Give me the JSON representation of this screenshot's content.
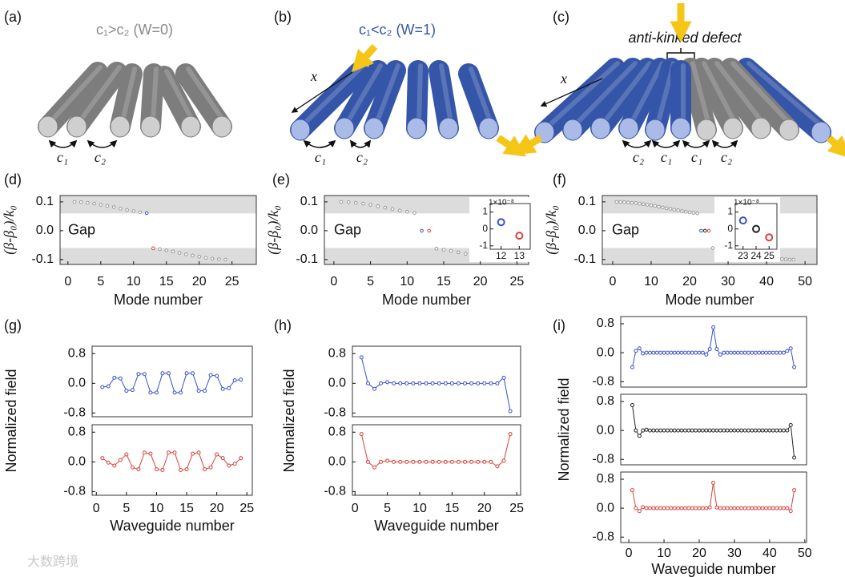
{
  "diagrams": [
    {
      "label": "(a)",
      "title": "c₁>c₂ (W=0)",
      "couplings": [
        "c₁",
        "c₂"
      ]
    },
    {
      "label": "(b)",
      "title": "c₁<c₂ (W=1)",
      "axis": "x",
      "couplings": [
        "c₁",
        "c₂"
      ]
    },
    {
      "label": "(c)",
      "annotation": "anti-kinked defect",
      "axis": "x",
      "couplings": [
        "c₂",
        "c₁",
        "c₁",
        "c₂"
      ]
    }
  ],
  "watermark": "大数跨境",
  "chart_data": [
    {
      "type": "scatter",
      "label": "(d)",
      "xlabel": "Mode number",
      "ylabel": "(β-β₀)/k₀",
      "annotation": "Gap",
      "xlim": [
        -1.2,
        28.7
      ],
      "xticks": [
        0,
        5,
        10,
        15,
        20,
        25
      ],
      "ylim": [
        -0.117,
        0.122
      ],
      "yticks": [
        0.1,
        {
          "value": 0,
          "label": "0.0"
        },
        -0.1
      ],
      "bands": [
        [
          0.06,
          0.122
        ],
        [
          -0.117,
          -0.06
        ]
      ],
      "series": [
        {
          "color": "#9a9a9a",
          "x": [
            1,
            2,
            3,
            4,
            5,
            6,
            7,
            8,
            9,
            10,
            11,
            14,
            15,
            16,
            17,
            18,
            19,
            20,
            21,
            22,
            23,
            24
          ],
          "values": [
            0.1,
            0.099,
            0.097,
            0.094,
            0.09,
            0.086,
            0.082,
            0.077,
            0.072,
            0.068,
            0.064,
            -0.064,
            -0.068,
            -0.072,
            -0.077,
            -0.082,
            -0.086,
            -0.09,
            -0.094,
            -0.097,
            -0.099,
            -0.1
          ]
        },
        {
          "color": "#3a50c8",
          "x": [
            12
          ],
          "values": [
            0.061
          ]
        },
        {
          "color": "#d9413a",
          "x": [
            13
          ],
          "values": [
            -0.061
          ]
        }
      ]
    },
    {
      "type": "scatter",
      "label": "(e)",
      "xlabel": "Mode number",
      "ylabel": "(β-β₀)/k₀",
      "annotation": "Gap",
      "xlim": [
        -1.3,
        26.6
      ],
      "xticks": [
        0,
        5,
        10,
        15,
        20,
        25
      ],
      "ylim": [
        -0.117,
        0.122
      ],
      "yticks": [
        0.1,
        {
          "value": 0,
          "label": "0.0"
        },
        -0.1
      ],
      "bands": [
        [
          0.06,
          0.122
        ],
        [
          -0.117,
          -0.06
        ]
      ],
      "series": [
        {
          "color": "#9a9a9a",
          "x": [
            1,
            2,
            3,
            4,
            5,
            6,
            7,
            8,
            9,
            10,
            11,
            14,
            15,
            16,
            17,
            18,
            19,
            20,
            21,
            22,
            23,
            24
          ],
          "values": [
            0.1,
            0.099,
            0.097,
            0.094,
            0.09,
            0.085,
            0.08,
            0.075,
            0.07,
            0.066,
            0.062,
            -0.062,
            -0.066,
            -0.07,
            -0.075,
            -0.08,
            -0.085,
            -0.09,
            -0.094,
            -0.097,
            -0.099,
            -0.1
          ]
        },
        {
          "color": "#3a50c8",
          "x": [
            12
          ],
          "values": [
            0
          ]
        },
        {
          "color": "#d9413a",
          "x": [
            13
          ],
          "values": [
            0
          ]
        }
      ],
      "inset": {
        "label": "1×10⁻⁸",
        "xlim": [
          11.4,
          13.6
        ],
        "xticks": [
          12,
          13
        ],
        "ylim": [
          -1.2,
          1.5
        ],
        "yticks": [
          1,
          0,
          -1
        ],
        "series": [
          {
            "color": "#3a50c8",
            "x": [
              12
            ],
            "values": [
              0.4
            ]
          },
          {
            "color": "#d9413a",
            "x": [
              13
            ],
            "values": [
              -0.4
            ]
          }
        ]
      }
    },
    {
      "type": "scatter",
      "label": "(f)",
      "xlabel": "Mode number",
      "ylabel": "(β-β₀)/k₀",
      "annotation": "Gap",
      "xlim": [
        -2.7,
        53.1
      ],
      "xticks": [
        0,
        10,
        20,
        30,
        40,
        50
      ],
      "ylim": [
        -0.117,
        0.122
      ],
      "yticks": [
        0.1,
        {
          "value": 0,
          "label": "0.0"
        },
        -0.1
      ],
      "bands": [
        [
          0.06,
          0.122
        ],
        [
          -0.117,
          -0.06
        ]
      ],
      "series": [
        {
          "color": "#9a9a9a",
          "x": [
            1,
            2,
            3,
            4,
            5,
            6,
            7,
            8,
            9,
            10,
            11,
            12,
            13,
            14,
            15,
            16,
            17,
            18,
            19,
            20,
            21,
            22,
            26,
            27,
            28,
            29,
            30,
            31,
            32,
            33,
            34,
            35,
            36,
            37,
            38,
            39,
            40,
            41,
            42,
            43,
            44,
            45,
            46,
            47
          ],
          "values": [
            0.1,
            0.1,
            0.099,
            0.098,
            0.097,
            0.096,
            0.094,
            0.092,
            0.09,
            0.088,
            0.086,
            0.083,
            0.081,
            0.078,
            0.076,
            0.073,
            0.071,
            0.068,
            0.066,
            0.064,
            0.062,
            0.06,
            -0.06,
            -0.062,
            -0.064,
            -0.066,
            -0.068,
            -0.071,
            -0.073,
            -0.076,
            -0.078,
            -0.081,
            -0.083,
            -0.086,
            -0.088,
            -0.09,
            -0.092,
            -0.094,
            -0.096,
            -0.097,
            -0.098,
            -0.099,
            -0.1,
            -0.1
          ]
        },
        {
          "color": "#3a50c8",
          "x": [
            23
          ],
          "values": [
            0
          ]
        },
        {
          "color": "#222222",
          "x": [
            24
          ],
          "values": [
            0
          ]
        },
        {
          "color": "#d9413a",
          "x": [
            25
          ],
          "values": [
            0
          ]
        }
      ],
      "inset": {
        "label": "1×10⁻⁸",
        "xlim": [
          22.4,
          25.6
        ],
        "xticks": [
          23,
          24,
          25
        ],
        "ylim": [
          -1.2,
          1.5
        ],
        "yticks": [
          1,
          0,
          -1
        ],
        "series": [
          {
            "color": "#3a50c8",
            "x": [
              23
            ],
            "values": [
              0.5
            ]
          },
          {
            "color": "#222222",
            "x": [
              24
            ],
            "values": [
              0
            ]
          },
          {
            "color": "#d9413a",
            "x": [
              25
            ],
            "values": [
              -0.5
            ]
          }
        ]
      }
    },
    {
      "type": "line",
      "label": "(g)",
      "xlabel": "Waveguide number",
      "ylabel": "Normalized field",
      "xlim": [
        -0.7,
        25.9
      ],
      "xticks": [
        0,
        5,
        10,
        15,
        20,
        25
      ],
      "x": [
        1,
        2,
        3,
        4,
        5,
        6,
        7,
        8,
        9,
        10,
        11,
        12,
        13,
        14,
        15,
        16,
        17,
        18,
        19,
        20,
        21,
        22,
        23,
        24
      ],
      "panels": [
        {
          "ylim": [
            -0.9,
            1.0
          ],
          "yticks": [
            0.8,
            {
              "value": 0,
              "label": "0.0"
            },
            -0.8
          ],
          "series": [
            {
              "color": "#3a50c8",
              "values": [
                -0.1,
                -0.08,
                0.15,
                0.13,
                -0.2,
                -0.18,
                0.25,
                0.25,
                -0.25,
                -0.25,
                0.27,
                0.27,
                -0.25,
                -0.25,
                0.27,
                0.27,
                -0.2,
                -0.2,
                0.22,
                0.2,
                -0.15,
                -0.13,
                0.08,
                0.1
              ]
            }
          ]
        },
        {
          "ylim": [
            -0.9,
            1.0
          ],
          "yticks": [
            0.8,
            {
              "value": 0,
              "label": "0.0"
            },
            -0.8
          ],
          "series": [
            {
              "color": "#d9413a",
              "values": [
                0.1,
                -0.02,
                -0.1,
                0.05,
                0.2,
                -0.15,
                -0.2,
                0.25,
                0.22,
                -0.2,
                -0.22,
                0.25,
                0.25,
                -0.22,
                -0.2,
                0.22,
                0.25,
                -0.2,
                -0.15,
                0.2,
                0.1,
                -0.1,
                -0.05,
                0.1
              ]
            }
          ]
        }
      ]
    },
    {
      "type": "line",
      "label": "(h)",
      "xlabel": "Waveguide number",
      "ylabel": "Normalized field",
      "xlim": [
        -0.4,
        25.6
      ],
      "xticks": [
        0,
        5,
        10,
        15,
        20,
        25
      ],
      "x": [
        1,
        2,
        3,
        4,
        5,
        6,
        7,
        8,
        9,
        10,
        11,
        12,
        13,
        14,
        15,
        16,
        17,
        18,
        19,
        20,
        21,
        22,
        23,
        24
      ],
      "panels": [
        {
          "ylim": [
            -0.9,
            1.0
          ],
          "yticks": [
            0.8,
            {
              "value": 0,
              "label": "0.0"
            },
            -0.8
          ],
          "series": [
            {
              "color": "#3a50c8",
              "values": [
                0.7,
                0,
                -0.15,
                0,
                0.03,
                0,
                0,
                0,
                0,
                0,
                0,
                0,
                0,
                0,
                0,
                0,
                0,
                0,
                0,
                0,
                0,
                0,
                0.15,
                -0.75
              ]
            }
          ]
        },
        {
          "ylim": [
            -0.9,
            1.0
          ],
          "yticks": [
            0.8,
            {
              "value": 0,
              "label": "0.0"
            },
            -0.8
          ],
          "series": [
            {
              "color": "#d9413a",
              "values": [
                0.75,
                0,
                -0.15,
                0,
                0.03,
                0,
                0,
                0,
                0,
                0,
                0,
                0,
                0,
                0,
                0,
                0,
                0,
                0,
                0,
                0,
                0,
                -0.12,
                0.03,
                0.75
              ]
            }
          ]
        }
      ]
    },
    {
      "type": "line",
      "label": "(i)",
      "xlabel": "Waveguide number",
      "ylabel": "Normalized field",
      "xlim": [
        -2.3,
        50.5
      ],
      "xticks": [
        0,
        10,
        20,
        30,
        40,
        50
      ],
      "x": [
        1,
        2,
        3,
        4,
        5,
        6,
        7,
        8,
        9,
        10,
        11,
        12,
        13,
        14,
        15,
        16,
        17,
        18,
        19,
        20,
        21,
        22,
        23,
        24,
        25,
        26,
        27,
        28,
        29,
        30,
        31,
        32,
        33,
        34,
        35,
        36,
        37,
        38,
        39,
        40,
        41,
        42,
        43,
        44,
        45,
        46,
        47
      ],
      "panels": [
        {
          "ylim": [
            -0.95,
            1.0
          ],
          "yticks": [
            0.8,
            {
              "value": 0,
              "label": "0.0"
            },
            -0.8
          ],
          "series": [
            {
              "color": "#3a50c8",
              "values": [
                -0.4,
                0.05,
                0.12,
                -0.02,
                0,
                0,
                0,
                0,
                0,
                0,
                0,
                0,
                0,
                0,
                0,
                0,
                0,
                0,
                0,
                0,
                0,
                -0.05,
                0.1,
                0.7,
                0.1,
                -0.05,
                0,
                0,
                0,
                0,
                0,
                0,
                0,
                0,
                0,
                0,
                0,
                0,
                0,
                0,
                0,
                0,
                0,
                0,
                0.05,
                0.12,
                -0.4
              ]
            }
          ]
        },
        {
          "ylim": [
            -0.95,
            1.0
          ],
          "yticks": [
            0.8,
            {
              "value": 0,
              "label": "0.0"
            },
            -0.8
          ],
          "series": [
            {
              "color": "#222222",
              "values": [
                0.7,
                0,
                -0.15,
                0,
                0.02,
                0,
                0,
                0,
                0,
                0,
                0,
                0,
                0,
                0,
                0,
                0,
                0,
                0,
                0,
                0,
                0,
                0,
                0,
                0,
                0,
                0,
                0,
                0,
                0,
                0,
                0,
                0,
                0,
                0,
                0,
                0,
                0,
                0,
                0,
                0,
                0,
                0,
                0,
                0,
                0,
                0.15,
                -0.75
              ]
            }
          ]
        },
        {
          "ylim": [
            -0.95,
            1.0
          ],
          "yticks": [
            0.8,
            {
              "value": 0,
              "label": "0.0"
            },
            -0.8
          ],
          "series": [
            {
              "color": "#d9413a",
              "values": [
                0.5,
                0,
                -0.08,
                0.03,
                0,
                0,
                0,
                0,
                0,
                0,
                0,
                0,
                0,
                0,
                0,
                0,
                0,
                0,
                0,
                0,
                0,
                0,
                0.02,
                0.7,
                0.02,
                0,
                0,
                0,
                0,
                0,
                0,
                0,
                0,
                0,
                0,
                0,
                0,
                0,
                0,
                0,
                0,
                0,
                0,
                0,
                0,
                -0.08,
                0.5
              ]
            }
          ]
        }
      ]
    }
  ]
}
